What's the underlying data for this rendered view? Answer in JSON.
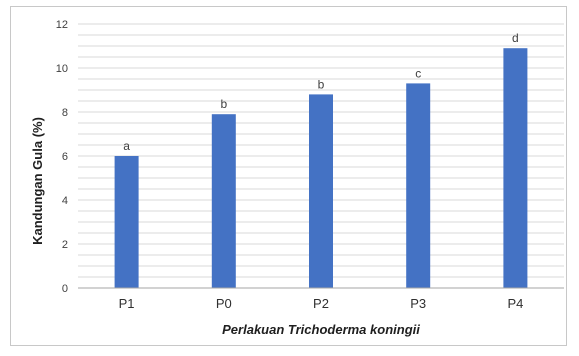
{
  "chart_data": {
    "type": "bar",
    "categories": [
      "P1",
      "P0",
      "P2",
      "P3",
      "P4"
    ],
    "values": [
      6.0,
      7.9,
      8.8,
      9.3,
      10.9
    ],
    "letters": [
      "a",
      "b",
      "b",
      "c",
      "d"
    ],
    "ylabel": "Kandungan Gula (%)",
    "xlabel_prefix": "Perlakuan ",
    "xlabel_italic": "Trichoderma koningii",
    "ylim": [
      0,
      12
    ],
    "yticks": [
      "0",
      "2",
      "4",
      "6",
      "8",
      "10",
      "12"
    ],
    "grid": true,
    "bar_color": "#4472c4",
    "grid_color": "#d9d9d9"
  }
}
